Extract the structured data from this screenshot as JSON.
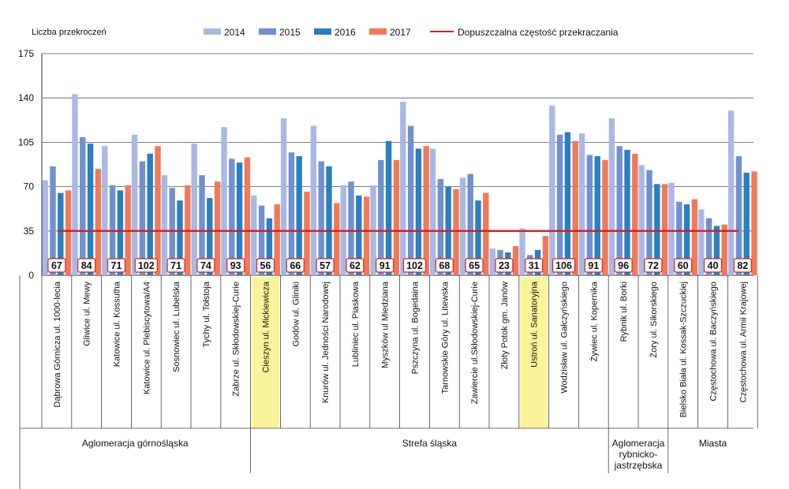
{
  "chart_data": {
    "type": "bar",
    "title": "",
    "ylabel": "Liczba przekroczeń",
    "xlabel": "",
    "ylim": [
      0,
      175
    ],
    "yticks": [
      0,
      35,
      70,
      105,
      140,
      175
    ],
    "grid": true,
    "legend_position": "top",
    "categories": [
      "Dąbrowa Górnicza ul. 1000-lecia",
      "Gliwice ul. Mewy",
      "Katowice ul. Kossutha",
      "Katowice ul. Plebiscytowa/A4",
      "Sosnowiec ul. Lubelska",
      "Tychy ul. Tołstoja",
      "Zabrze ul. Skłodowskiej-Curie",
      "Cieszyn ul. Mickiewicza",
      "Godów ul. Gliniki",
      "Knurów ul. Jedności Narodowej",
      "Lubliniec ul. Piaskowa",
      "Myszków ul Miedziana",
      "Pszczyna ul. Bogedaina",
      "Tarnowskie Góry ul. Litewska",
      "Zawiercie ul.Skłodowskiej-Curie",
      "Złoty Potok gm. Janów",
      "Ustroń ul. Sanatoryjna",
      "Wodzisław ul. Gałczyńskiego",
      "Żywiec ul. Kopernika",
      "Rybnik ul. Borki",
      "Żory ul. Sikorskiego",
      "Bielsko Biała ul. Kossak-Szczuckiej",
      "Częstochowa ul. Baczyńskiego",
      "Częstochowa ul. Armii Krajowej"
    ],
    "highlighted_categories": [
      "Cieszyn ul. Mickiewicza",
      "Ustroń ul. Sanatoryjna"
    ],
    "series": [
      {
        "name": "2014",
        "color": "#aab8e6",
        "values": [
          75,
          143,
          102,
          111,
          79,
          104,
          117,
          63,
          124,
          118,
          71,
          71,
          137,
          100,
          77,
          21,
          37,
          134,
          112,
          124,
          87,
          73,
          52,
          130
        ]
      },
      {
        "name": "2015",
        "color": "#7090d0",
        "values": [
          86,
          109,
          71,
          90,
          69,
          79,
          92,
          55,
          97,
          90,
          74,
          91,
          118,
          76,
          80,
          20,
          16,
          111,
          95,
          102,
          83,
          58,
          45,
          94
        ]
      },
      {
        "name": "2016",
        "color": "#2a7fbf",
        "values": [
          65,
          104,
          67,
          96,
          59,
          61,
          89,
          45,
          94,
          86,
          63,
          106,
          100,
          70,
          59,
          18,
          20,
          113,
          94,
          99,
          72,
          56,
          39,
          81
        ]
      },
      {
        "name": "2017",
        "color": "#f07a58",
        "values": [
          67,
          84,
          71,
          102,
          71,
          74,
          93,
          56,
          66,
          57,
          62,
          91,
          102,
          68,
          65,
          23,
          31,
          106,
          91,
          96,
          72,
          60,
          40,
          82
        ]
      }
    ],
    "data_labels": [
      "67",
      "84",
      "71",
      "102",
      "71",
      "74",
      "93",
      "56",
      "66",
      "57",
      "62",
      "91",
      "102",
      "68",
      "65",
      "23",
      "31",
      "106",
      "91",
      "96",
      "72",
      "60",
      "40",
      "82"
    ],
    "reference_line": {
      "name": "Dopuszczalna częstość przekraczania",
      "value": 35,
      "color": "#d42020"
    },
    "groups": [
      {
        "label": "Aglomeracja górnośląska",
        "start": 0,
        "end": 6
      },
      {
        "label": "Strefa śląska",
        "start": 7,
        "end": 18
      },
      {
        "label": "Aglomeracja rybnicko-jastrzębska",
        "lines": [
          "Aglomeracja",
          "rybnicko-",
          "jastrzębska"
        ],
        "start": 19,
        "end": 20
      },
      {
        "label": "Miasta",
        "start": 21,
        "end": 23
      }
    ]
  }
}
